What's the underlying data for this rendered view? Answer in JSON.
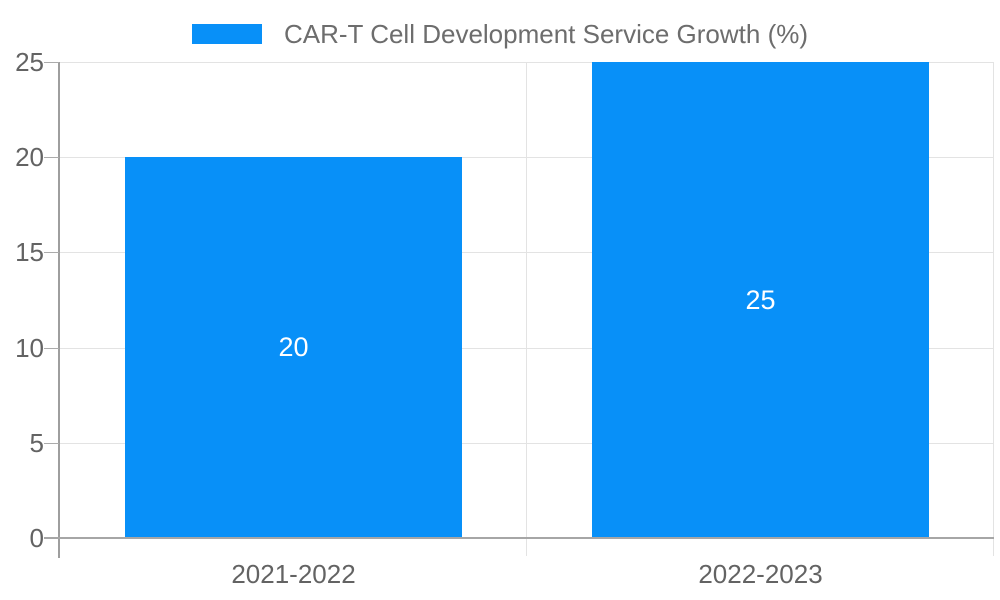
{
  "chart_data": {
    "type": "bar",
    "title": "",
    "legend": "CAR-T Cell Development Service Growth (%)",
    "legend_position": "top-center",
    "categories": [
      "2021-2022",
      "2022-2023"
    ],
    "series": [
      {
        "name": "CAR-T Cell Development Service Growth (%)",
        "values": [
          20,
          25
        ]
      }
    ],
    "data_labels": [
      "20",
      "25"
    ],
    "ylim": [
      0,
      25
    ],
    "yticks": [
      0,
      5,
      10,
      15,
      20,
      25
    ],
    "grid": true,
    "colors": {
      "bar": "#0890f8",
      "data_label": "#ffffff",
      "axis_line": "#a6a6a6",
      "y_axis_line": "#9e9e9e",
      "gridline": "#e3e3e3",
      "tick_label": "#636363",
      "legend_text": "#6d6d6d",
      "background": "#ffffff"
    }
  }
}
